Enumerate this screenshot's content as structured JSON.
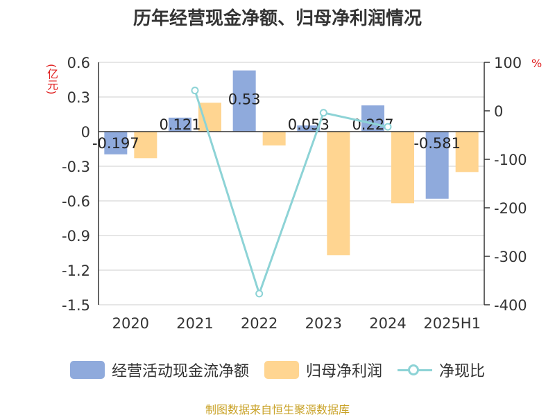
{
  "title": "历年经营现金净额、归母净利润情况",
  "source": "制图数据来自恒生聚源数据库",
  "colors": {
    "ocf": "#8faadc",
    "net_profit": "#ffd591",
    "ratio_line": "#8dd3d6",
    "axis_text": "#333333",
    "unit_text": "#e02020",
    "grid": "#cccccc"
  },
  "chart_data": {
    "type": "bar",
    "categories": [
      "2020",
      "2021",
      "2022",
      "2023",
      "2024",
      "2025H1"
    ],
    "series": [
      {
        "name": "经营活动现金流净额",
        "type": "bar",
        "axis": "left",
        "values": [
          -0.197,
          0.121,
          0.53,
          0.053,
          0.227,
          -0.581
        ],
        "data_labels": [
          "-0.197",
          "0.121",
          "0.53",
          "0.053",
          "0.227",
          "-0.581"
        ]
      },
      {
        "name": "归母净利润",
        "type": "bar",
        "axis": "left",
        "values": [
          -0.23,
          0.25,
          -0.12,
          -1.07,
          -0.62,
          -0.35
        ]
      },
      {
        "name": "净现比",
        "type": "line",
        "axis": "right",
        "values": [
          null,
          42,
          -377,
          -4,
          -33,
          null
        ]
      }
    ],
    "y_left": {
      "unit": "(亿元)",
      "ylim": [
        -1.5,
        0.6
      ],
      "ticks": [
        "0.6",
        "0.3",
        "0",
        "-0.3",
        "-0.6",
        "-0.9",
        "-1.2",
        "-1.5"
      ],
      "tick_values": [
        0.6,
        0.3,
        0,
        -0.3,
        -0.6,
        -0.9,
        -1.2,
        -1.5
      ]
    },
    "y_right": {
      "unit": "%",
      "ylim": [
        -400,
        100
      ],
      "ticks": [
        "100",
        "0",
        "-100",
        "-200",
        "-300",
        "-400"
      ],
      "tick_values": [
        100,
        0,
        -100,
        -200,
        -300,
        -400
      ]
    },
    "grid": true,
    "legend_position": "bottom"
  }
}
